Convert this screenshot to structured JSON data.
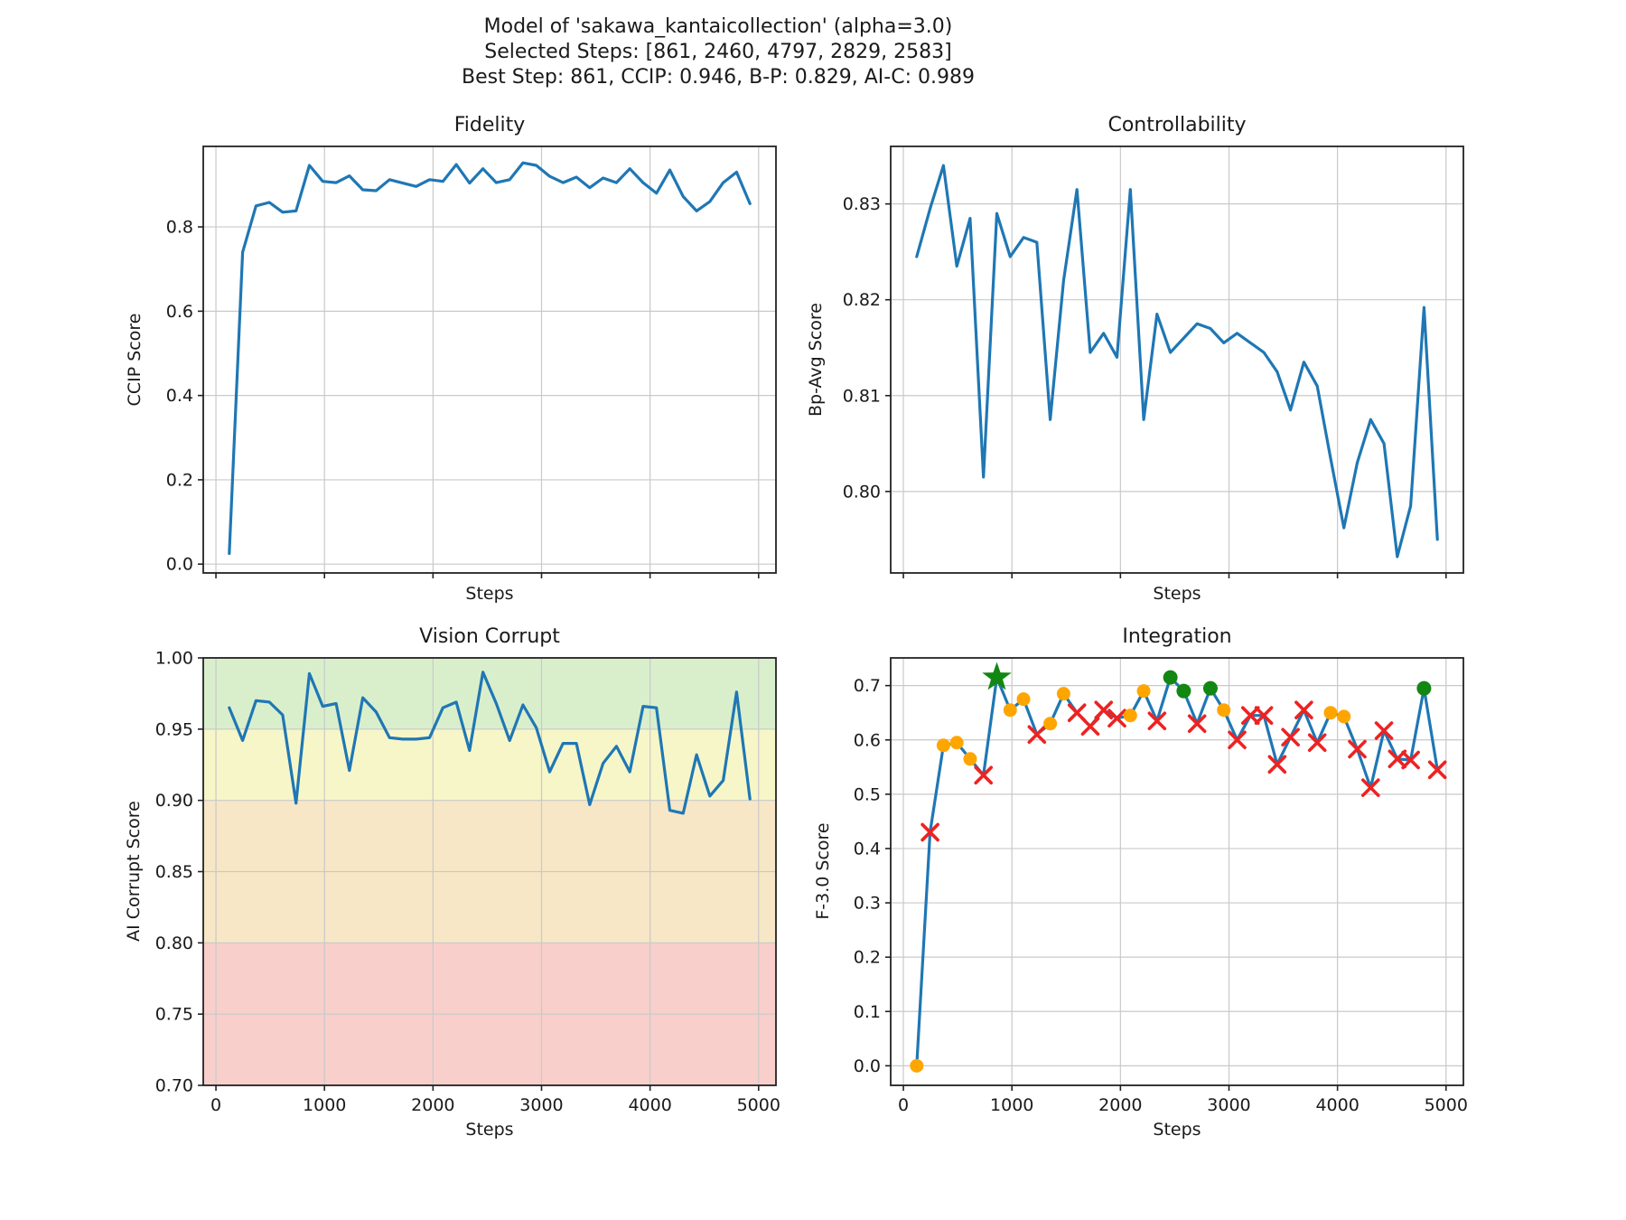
{
  "figure": {
    "title_lines": [
      "Model of 'sakawa_kantaicollection' (alpha=3.0)",
      "Selected Steps: [861, 2460, 4797, 2829, 2583]",
      "Best Step: 861, CCIP: 0.946, B-P: 0.829, AI-C: 0.989"
    ],
    "best_step": "861",
    "best_ccip": "0.946",
    "best_bp": "0.829",
    "best_aic": "0.989",
    "background": "#ffffff"
  },
  "colors": {
    "line": "#1f77b4",
    "grid": "#c9c9c9",
    "spine": "#222222",
    "tick": "#222222",
    "text": "#1a1a1a",
    "marker_orange": "#ffa500",
    "marker_red": "#ee2222",
    "marker_green": "#128712",
    "star_green": "#128712",
    "band_green": "#d9efcc",
    "band_yellow": "#f6f6c9",
    "band_orange": "#f7e7c6",
    "band_red": "#f8cfcb"
  },
  "chart_data": [
    {
      "id": "fidelity",
      "type": "line",
      "title": "Fidelity",
      "xlabel": "Steps",
      "ylabel": "CCIP Score",
      "xlim": [
        -117,
        5160
      ],
      "ylim": [
        -0.021,
        0.991
      ],
      "grid": true,
      "legend": "none",
      "xticks": {
        "values": [
          0,
          1000,
          2000,
          3000,
          4000,
          5000
        ],
        "labels": [
          "0",
          "1000",
          "2000",
          "3000",
          "4000",
          "5000"
        ],
        "show_labels": false
      },
      "yticks": {
        "values": [
          0.0,
          0.2,
          0.4,
          0.6,
          0.8
        ],
        "labels": [
          "0.0",
          "0.2",
          "0.4",
          "0.6",
          "0.8"
        ]
      },
      "x": [
        123,
        246,
        369,
        492,
        615,
        738,
        861,
        984,
        1107,
        1230,
        1353,
        1476,
        1599,
        1722,
        1845,
        1968,
        2091,
        2214,
        2337,
        2460,
        2583,
        2706,
        2829,
        2952,
        3075,
        3198,
        3321,
        3444,
        3567,
        3690,
        3813,
        3936,
        4059,
        4182,
        4305,
        4428,
        4551,
        4674,
        4797,
        4920
      ],
      "values": [
        0.025,
        0.74,
        0.85,
        0.858,
        0.835,
        0.838,
        0.946,
        0.908,
        0.905,
        0.921,
        0.888,
        0.886,
        0.912,
        0.904,
        0.896,
        0.912,
        0.908,
        0.948,
        0.904,
        0.938,
        0.905,
        0.912,
        0.952,
        0.946,
        0.92,
        0.905,
        0.918,
        0.893,
        0.916,
        0.905,
        0.938,
        0.905,
        0.88,
        0.935,
        0.872,
        0.838,
        0.86,
        0.905,
        0.93,
        0.855
      ]
    },
    {
      "id": "controllability",
      "type": "line",
      "title": "Controllability",
      "xlabel": "Steps",
      "ylabel": "Bp-Avg Score",
      "xlim": [
        -117,
        5160
      ],
      "ylim": [
        0.7915,
        0.836
      ],
      "grid": true,
      "legend": "none",
      "xticks": {
        "values": [
          0,
          1000,
          2000,
          3000,
          4000,
          5000
        ],
        "labels": [
          "0",
          "1000",
          "2000",
          "3000",
          "4000",
          "5000"
        ],
        "show_labels": false
      },
      "yticks": {
        "values": [
          0.8,
          0.81,
          0.82,
          0.83
        ],
        "labels": [
          "0.80",
          "0.81",
          "0.82",
          "0.83"
        ]
      },
      "x": [
        123,
        246,
        369,
        492,
        615,
        738,
        861,
        984,
        1107,
        1230,
        1353,
        1476,
        1599,
        1722,
        1845,
        1968,
        2091,
        2214,
        2337,
        2460,
        2583,
        2706,
        2829,
        2952,
        3075,
        3198,
        3321,
        3444,
        3567,
        3690,
        3813,
        3936,
        4059,
        4182,
        4305,
        4428,
        4551,
        4674,
        4797,
        4920
      ],
      "values": [
        0.8245,
        0.8295,
        0.834,
        0.8235,
        0.8285,
        0.8015,
        0.829,
        0.8245,
        0.8265,
        0.826,
        0.8075,
        0.822,
        0.8315,
        0.8145,
        0.8165,
        0.814,
        0.8315,
        0.8075,
        0.8185,
        0.8145,
        0.816,
        0.8175,
        0.817,
        0.8155,
        0.8165,
        0.8155,
        0.8145,
        0.8125,
        0.8085,
        0.8135,
        0.811,
        0.8035,
        0.7962,
        0.803,
        0.8075,
        0.805,
        0.7932,
        0.7985,
        0.8192,
        0.795
      ]
    },
    {
      "id": "vision_corrupt",
      "type": "line",
      "title": "Vision Corrupt",
      "xlabel": "Steps",
      "ylabel": "AI Corrupt Score",
      "xlim": [
        -117,
        5160
      ],
      "ylim": [
        0.7,
        1.0
      ],
      "grid": true,
      "legend": "none",
      "bands": [
        {
          "from": 0.95,
          "to": 1.0,
          "color_key": "band_green"
        },
        {
          "from": 0.9,
          "to": 0.95,
          "color_key": "band_yellow"
        },
        {
          "from": 0.8,
          "to": 0.9,
          "color_key": "band_orange"
        },
        {
          "from": 0.7,
          "to": 0.8,
          "color_key": "band_red"
        }
      ],
      "xticks": {
        "values": [
          0,
          1000,
          2000,
          3000,
          4000,
          5000
        ],
        "labels": [
          "0",
          "1000",
          "2000",
          "3000",
          "4000",
          "5000"
        ],
        "show_labels": true
      },
      "yticks": {
        "values": [
          0.7,
          0.75,
          0.8,
          0.85,
          0.9,
          0.95,
          1.0
        ],
        "labels": [
          "0.70",
          "0.75",
          "0.80",
          "0.85",
          "0.90",
          "0.95",
          "1.00"
        ]
      },
      "x": [
        123,
        246,
        369,
        492,
        615,
        738,
        861,
        984,
        1107,
        1230,
        1353,
        1476,
        1599,
        1722,
        1845,
        1968,
        2091,
        2214,
        2337,
        2460,
        2583,
        2706,
        2829,
        2952,
        3075,
        3198,
        3321,
        3444,
        3567,
        3690,
        3813,
        3936,
        4059,
        4182,
        4305,
        4428,
        4551,
        4674,
        4797,
        4920
      ],
      "values": [
        0.965,
        0.942,
        0.97,
        0.969,
        0.96,
        0.898,
        0.989,
        0.966,
        0.968,
        0.921,
        0.972,
        0.962,
        0.944,
        0.943,
        0.943,
        0.944,
        0.965,
        0.969,
        0.935,
        0.99,
        0.968,
        0.942,
        0.967,
        0.951,
        0.92,
        0.94,
        0.94,
        0.897,
        0.926,
        0.938,
        0.92,
        0.966,
        0.965,
        0.893,
        0.891,
        0.932,
        0.903,
        0.914,
        0.976,
        0.901
      ]
    },
    {
      "id": "integration",
      "type": "line",
      "title": "Integration",
      "xlabel": "Steps",
      "ylabel": "F-3.0 Score",
      "xlim": [
        -117,
        5160
      ],
      "ylim": [
        -0.036,
        0.751
      ],
      "grid": true,
      "legend": "none",
      "xticks": {
        "values": [
          0,
          1000,
          2000,
          3000,
          4000,
          5000
        ],
        "labels": [
          "0",
          "1000",
          "2000",
          "3000",
          "4000",
          "5000"
        ],
        "show_labels": true
      },
      "yticks": {
        "values": [
          0.0,
          0.1,
          0.2,
          0.3,
          0.4,
          0.5,
          0.6,
          0.7
        ],
        "labels": [
          "0.0",
          "0.1",
          "0.2",
          "0.3",
          "0.4",
          "0.5",
          "0.6",
          "0.7"
        ]
      },
      "x": [
        123,
        246,
        369,
        492,
        615,
        738,
        861,
        984,
        1107,
        1230,
        1353,
        1476,
        1599,
        1722,
        1845,
        1968,
        2091,
        2214,
        2337,
        2460,
        2583,
        2706,
        2829,
        2952,
        3075,
        3198,
        3321,
        3444,
        3567,
        3690,
        3813,
        3936,
        4059,
        4182,
        4305,
        4428,
        4551,
        4674,
        4797,
        4920
      ],
      "values": [
        0.0,
        0.43,
        0.59,
        0.595,
        0.565,
        0.535,
        0.715,
        0.655,
        0.675,
        0.61,
        0.63,
        0.685,
        0.65,
        0.625,
        0.655,
        0.64,
        0.645,
        0.69,
        0.635,
        0.715,
        0.69,
        0.63,
        0.695,
        0.655,
        0.6,
        0.645,
        0.645,
        0.555,
        0.605,
        0.655,
        0.595,
        0.65,
        0.643,
        0.583,
        0.512,
        0.617,
        0.565,
        0.563,
        0.695,
        0.545
      ],
      "markers": [
        "o",
        "x",
        "o",
        "o",
        "o",
        "x",
        "star",
        "o",
        "o",
        "x",
        "o",
        "o",
        "x",
        "x",
        "x",
        "x",
        "o",
        "o",
        "x",
        "g",
        "g",
        "x",
        "g",
        "o",
        "x",
        "x",
        "x",
        "x",
        "x",
        "x",
        "x",
        "o",
        "o",
        "x",
        "x",
        "x",
        "x",
        "x",
        "g",
        "x"
      ],
      "marker_legend": {
        "o": "candidate (orange dot)",
        "x": "rejected (red x)",
        "g": "selected step (green dot)",
        "star": "best step (green star)"
      }
    }
  ]
}
